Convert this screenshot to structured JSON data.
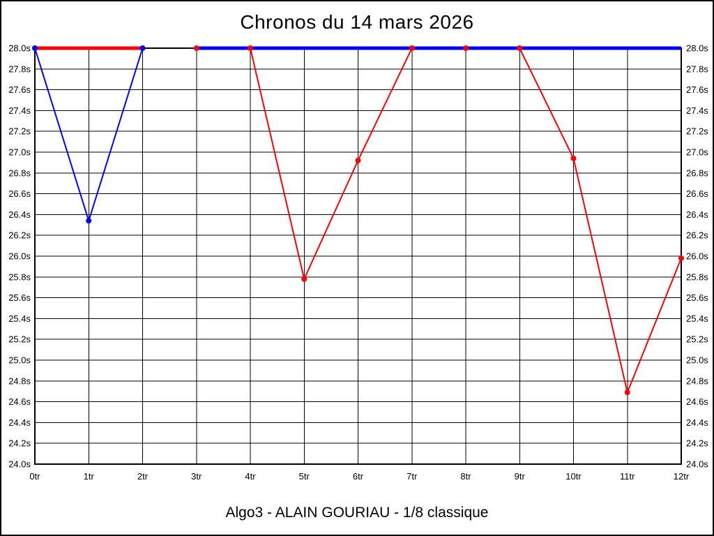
{
  "window": {
    "background": "#ffffff",
    "border_color": "#000000"
  },
  "chart_data": {
    "type": "line",
    "title": "Chronos du 14 mars 2026",
    "subtitle": "Algo3 - ALAIN GOURIAU - 1/8 classique",
    "grid": true,
    "axis_color": "#000000",
    "x_unit": "tr",
    "x_labels": [
      "0tr",
      "1tr",
      "2tr",
      "3tr",
      "4tr",
      "5tr",
      "6tr",
      "7tr",
      "8tr",
      "9tr",
      "10tr",
      "11tr",
      "12tr"
    ],
    "y_labels": [
      "28.0s",
      "27.8s",
      "27.6s",
      "27.4s",
      "27.2s",
      "27.0s",
      "26.8s",
      "26.6s",
      "26.4s",
      "26.2s",
      "26.0s",
      "25.8s",
      "25.6s",
      "25.4s",
      "25.2s",
      "25.0s",
      "24.8s",
      "24.6s",
      "24.4s",
      "24.2s",
      "24.0s"
    ],
    "ylim": [
      24.0,
      28.0
    ],
    "ytick_step": 0.2,
    "y_axis_labels_on_both_sides": true,
    "series": [
      {
        "name": "red-lap-times",
        "color": "#ff0000",
        "style": "thin",
        "markers": true,
        "points": [
          {
            "x": 3,
            "y": 28.0
          },
          {
            "x": 4,
            "y": 28.0
          },
          {
            "x": 5,
            "y": 25.78
          },
          {
            "x": 6,
            "y": 26.92
          },
          {
            "x": 7,
            "y": 28.0
          },
          {
            "x": 8,
            "y": 28.0
          },
          {
            "x": 9,
            "y": 28.0
          },
          {
            "x": 10,
            "y": 26.94
          },
          {
            "x": 11,
            "y": 24.69
          },
          {
            "x": 12,
            "y": 25.98
          }
        ]
      },
      {
        "name": "blue-record-line",
        "color": "#0000ff",
        "style": "thick",
        "markers": false,
        "points": [
          {
            "x": 3,
            "y": 28.0
          },
          {
            "x": 12,
            "y": 28.0
          }
        ]
      },
      {
        "name": "red-record-line",
        "color": "#ff0000",
        "style": "thick",
        "markers": false,
        "points": [
          {
            "x": 0,
            "y": 28.0
          },
          {
            "x": 2,
            "y": 28.0
          }
        ]
      },
      {
        "name": "blue-lap-times",
        "color": "#0000ff",
        "style": "thin",
        "markers": true,
        "points": [
          {
            "x": 0,
            "y": 28.0
          },
          {
            "x": 1,
            "y": 26.34
          },
          {
            "x": 2,
            "y": 28.0
          }
        ]
      }
    ]
  }
}
